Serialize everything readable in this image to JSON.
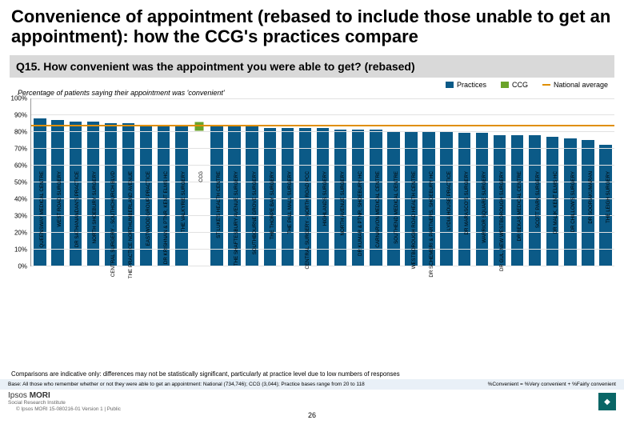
{
  "title": "Convenience of appointment (rebased to include those unable to get an appointment): how the CCG's practices compare",
  "question": "Q15. How convenient was the appointment you were able to get? (rebased)",
  "legend": {
    "practices": {
      "label": "Practices",
      "color": "#0b5a87"
    },
    "ccg": {
      "label": "CCG",
      "color": "#6aa329"
    },
    "national": {
      "label": "National average",
      "color": "#e08f00"
    }
  },
  "subtitle": "Percentage of patients saying their appointment was 'convenient'",
  "chart": {
    "ylim": [
      0,
      100
    ],
    "ytick_step": 10,
    "bg": "#ffffff",
    "grid": "#e2e2e2",
    "bar_color": "#0b5a87",
    "ccg_color": "#6aa329",
    "nat_color": "#e08f00",
    "national_avg": 83,
    "categories": [
      "QUEENSWAY MEDICAL CENTRE",
      "WEST ROAD SURGERY",
      "DR SATHANANDAN'S PRACTICE",
      "NORTH SHOEBURY SURGERY",
      "CENTRAL SURGERY - SOUTHCHURCH BLVD",
      "THE PRACTICE NORTHUMBERLAND AVENUE",
      "EASTWOOD GROUP PRACTICE",
      "DR KRISHNAN & PTNR, KENT ELMS HC",
      "THE VALKYRIE SURGERY",
      "CCG",
      "ST LUKE'S HEALTH CENTRE",
      "THE SHAFTESBURY AVENUE SURGERY",
      "SOUTHBOURNE GROVE SURGERY",
      "THE THORPE BAY SURGERY",
      "THE PALL MALL SURGERY",
      "CENTRAL SURGERY - NORTH ROAD PCC",
      "HIGHLANDS SURGERY",
      "NORTH AVENUE SURGERY",
      "DR KUMAR & PTNR, SHOEBURY HC",
      "CARNARVON MEDICAL CENTRE",
      "SOUTHEND MEDICAL CENTRE",
      "WESTBOROUGH ROAD HEALTH CENTRE",
      "DR SCHEMBRI & PARTNERS, SHOEBURY HC",
      "LYDIA HOUSE PRACTICE",
      "DR MARASCO'S SURGERY",
      "WARRIOR SQUARE SURGERY",
      "DR GUL, NEW WESTBOROUGH SURGERY",
      "DR BEKAS MEDICAL CENTRE",
      "SCOTT PARK SURGERY",
      "DR MALIK, KENT ELMS HC",
      "DR CHILLOW'S SURGERY",
      "DR SOORIAKUMARAN",
      "THE LEIGH SURGERY"
    ],
    "values": [
      88,
      87,
      86,
      86,
      85,
      85,
      84,
      84,
      84,
      83,
      83,
      83,
      83,
      82,
      82,
      82,
      82,
      81,
      81,
      81,
      80,
      80,
      80,
      80,
      79,
      79,
      78,
      78,
      78,
      77,
      76,
      75,
      72
    ],
    "ccg_index": 9
  },
  "comparison": "Comparisons are indicative only: differences may not be statistically significant, particularly at practice level due to low numbers of responses",
  "footer": {
    "base": "Base: All those who remember whether or not they were able to get an appointment: National (734,746); CCG (3,044); Practice bases range from 20 to 118",
    "def": "%Convenient = %Very convenient + %Fairly convenient"
  },
  "logo": {
    "a": "Ipsos",
    "b": "MORI",
    "c": "Social Research Institute"
  },
  "copyright": "© Ipsos MORI    15-080216-01 Version 1 | Public",
  "page": "26"
}
